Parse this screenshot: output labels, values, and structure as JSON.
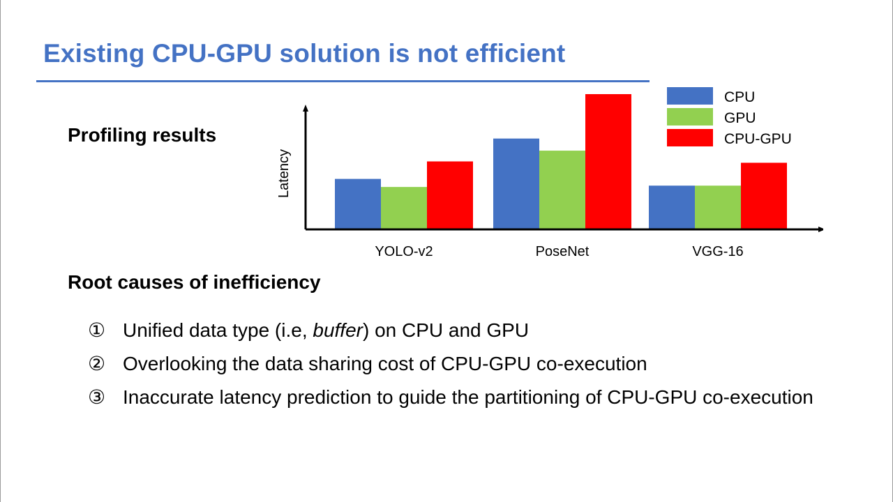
{
  "colors": {
    "title": "#4472C4",
    "rule": "#4472C4",
    "cpu": "#4472C4",
    "gpu": "#92D050",
    "cpu_gpu": "#FF0000",
    "axis": "#000000"
  },
  "slide": {
    "title": "Existing CPU-GPU solution is not efficient",
    "section1_heading": "Profiling results",
    "section2_heading": "Root causes of inefficiency",
    "causes": [
      {
        "marker": "①",
        "text_before": "Unified data type (i.e, ",
        "emphasis": "buffer",
        "text_after": ") on CPU and GPU"
      },
      {
        "marker": "②",
        "text_before": "Overlooking the data sharing cost of CPU-GPU co-execution",
        "emphasis": "",
        "text_after": ""
      },
      {
        "marker": "③",
        "text_before": "Inaccurate latency prediction to guide the partitioning of CPU-GPU co-execution",
        "emphasis": "",
        "text_after": ""
      }
    ]
  },
  "chart_data": {
    "type": "bar",
    "ylabel": "Latency",
    "xlabel": "",
    "categories": [
      "YOLO-v2",
      "PoseNet",
      "VGG-16"
    ],
    "series": [
      {
        "name": "CPU",
        "color": "#4472C4",
        "values": [
          37,
          67,
          32
        ]
      },
      {
        "name": "GPU",
        "color": "#92D050",
        "values": [
          31,
          58,
          32
        ]
      },
      {
        "name": "CPU-GPU",
        "color": "#FF0000",
        "values": [
          50,
          100,
          49
        ]
      }
    ],
    "ylim": [
      0,
      100
    ],
    "y_ticks_shown": false,
    "grid": false,
    "legend": "top-right"
  }
}
